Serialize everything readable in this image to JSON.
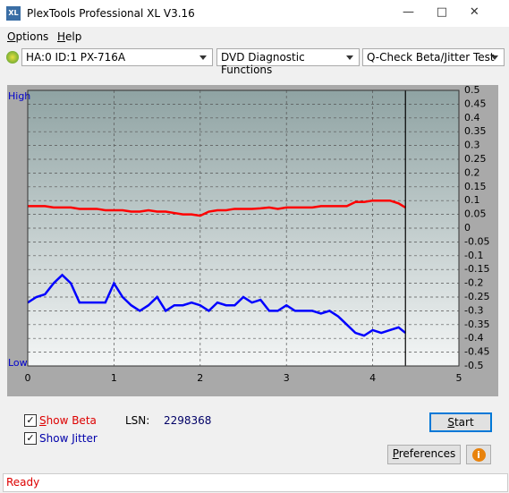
{
  "window": {
    "title": "PlexTools Professional XL V3.16",
    "menu": [
      "Options",
      "Help"
    ],
    "drive": "HA:0 ID:1  PX-716A",
    "function": "DVD Diagnostic Functions",
    "test": "Q-Check Beta/Jitter Test"
  },
  "chart_data": {
    "type": "line",
    "left_top": "High",
    "left_bottom": "Low",
    "x": [
      0,
      0.1,
      0.2,
      0.3,
      0.4,
      0.5,
      0.6,
      0.7,
      0.8,
      0.9,
      1,
      1.1,
      1.2,
      1.3,
      1.4,
      1.5,
      1.6,
      1.7,
      1.8,
      1.9,
      2,
      2.1,
      2.2,
      2.3,
      2.4,
      2.5,
      2.6,
      2.7,
      2.8,
      2.9,
      3,
      3.1,
      3.2,
      3.3,
      3.4,
      3.5,
      3.6,
      3.7,
      3.8,
      3.9,
      4,
      4.1,
      4.2,
      4.3,
      4.38
    ],
    "series": [
      {
        "name": "Beta",
        "color": "#ff0000",
        "values": [
          0.08,
          0.08,
          0.08,
          0.075,
          0.075,
          0.075,
          0.07,
          0.07,
          0.07,
          0.065,
          0.065,
          0.065,
          0.06,
          0.06,
          0.065,
          0.06,
          0.06,
          0.055,
          0.05,
          0.05,
          0.045,
          0.06,
          0.065,
          0.065,
          0.07,
          0.07,
          0.07,
          0.072,
          0.075,
          0.07,
          0.075,
          0.075,
          0.075,
          0.075,
          0.08,
          0.08,
          0.08,
          0.08,
          0.095,
          0.095,
          0.1,
          0.1,
          0.1,
          0.09,
          0.075
        ]
      },
      {
        "name": "Jitter",
        "color": "#0000ff",
        "values": [
          -0.27,
          -0.25,
          -0.24,
          -0.2,
          -0.17,
          -0.2,
          -0.27,
          -0.27,
          -0.27,
          -0.27,
          -0.2,
          -0.25,
          -0.28,
          -0.3,
          -0.28,
          -0.25,
          -0.3,
          -0.28,
          -0.28,
          -0.27,
          -0.28,
          -0.3,
          -0.27,
          -0.28,
          -0.28,
          -0.25,
          -0.27,
          -0.26,
          -0.3,
          -0.3,
          -0.28,
          -0.3,
          -0.3,
          -0.3,
          -0.31,
          -0.3,
          -0.32,
          -0.35,
          -0.38,
          -0.39,
          -0.37,
          -0.38,
          -0.37,
          -0.36,
          -0.38
        ]
      }
    ],
    "marker_x": 4.38,
    "xlim": [
      0,
      5
    ],
    "xticks": [
      0,
      1,
      2,
      3,
      4,
      5
    ],
    "ylim": [
      -0.5,
      0.5
    ],
    "yticks": [
      0.5,
      0.45,
      0.4,
      0.35,
      0.3,
      0.25,
      0.2,
      0.15,
      0.1,
      0.05,
      0,
      -0.05,
      -0.1,
      -0.15,
      -0.2,
      -0.25,
      -0.3,
      -0.35,
      -0.4,
      -0.45,
      -0.5
    ],
    "grid": true
  },
  "controls": {
    "show_beta": "Show Beta",
    "show_jitter": "Show Jitter",
    "lsn_label": "LSN:",
    "lsn_value": "2298368",
    "start": "Start",
    "preferences": "Preferences",
    "info": "i"
  },
  "status": "Ready"
}
